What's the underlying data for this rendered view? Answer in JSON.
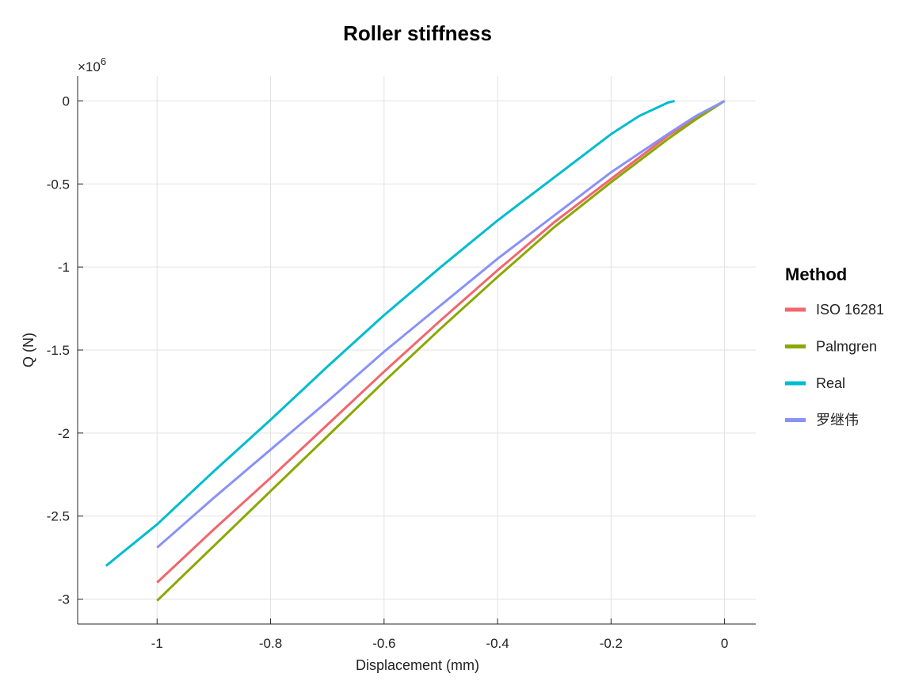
{
  "chart_data": {
    "type": "line",
    "title": "Roller stiffness",
    "xlabel": "Displacement (mm)",
    "ylabel": "Q (N)",
    "y_exponent_base": "×10",
    "y_exponent_power": "6",
    "y_scale_factor": 1000000,
    "xlim": [
      -1.14,
      0.055
    ],
    "ylim": [
      -3150000.0,
      150000.0
    ],
    "x_ticks": [
      {
        "value": -1,
        "label": "-1"
      },
      {
        "value": -0.8,
        "label": "-0.8"
      },
      {
        "value": -0.6,
        "label": "-0.6"
      },
      {
        "value": -0.4,
        "label": "-0.4"
      },
      {
        "value": -0.2,
        "label": "-0.2"
      },
      {
        "value": 0,
        "label": "0"
      }
    ],
    "y_ticks": [
      {
        "value": 0,
        "label": "0"
      },
      {
        "value": -500000,
        "label": "-0.5"
      },
      {
        "value": -1000000,
        "label": "-1"
      },
      {
        "value": -1500000,
        "label": "-1.5"
      },
      {
        "value": -2000000,
        "label": "-2"
      },
      {
        "value": -2500000,
        "label": "-2.5"
      },
      {
        "value": -3000000,
        "label": "-3"
      }
    ],
    "grid": true,
    "legend": {
      "title": "Method",
      "position": "right"
    },
    "series": [
      {
        "name": "ISO 16281",
        "color": "#f2666e",
        "x": [
          -1.0,
          -0.9,
          -0.8,
          -0.7,
          -0.6,
          -0.5,
          -0.4,
          -0.3,
          -0.2,
          -0.1,
          -0.05,
          0.0
        ],
        "y": [
          -2900000,
          -2580000,
          -2270000,
          -1950000,
          -1630000,
          -1320000,
          -1020000,
          -730000,
          -470000,
          -210000,
          -100000,
          0
        ]
      },
      {
        "name": "Palmgren",
        "color": "#8aa800",
        "x": [
          -1.0,
          -0.9,
          -0.8,
          -0.7,
          -0.6,
          -0.5,
          -0.4,
          -0.3,
          -0.2,
          -0.1,
          -0.05,
          0.0
        ],
        "y": [
          -3010000,
          -2680000,
          -2350000,
          -2020000,
          -1690000,
          -1370000,
          -1060000,
          -760000,
          -490000,
          -230000,
          -110000,
          0
        ]
      },
      {
        "name": "Real",
        "color": "#00bcd0",
        "x": [
          -1.09,
          -1.0,
          -0.9,
          -0.8,
          -0.7,
          -0.6,
          -0.5,
          -0.4,
          -0.3,
          -0.2,
          -0.15,
          -0.1,
          -0.088
        ],
        "y": [
          -2800000,
          -2550000,
          -2230000,
          -1920000,
          -1600000,
          -1290000,
          -1000000,
          -720000,
          -460000,
          -200000,
          -90000,
          -10000,
          0
        ]
      },
      {
        "name": "罗继伟",
        "color": "#8892f7",
        "x": [
          -1.0,
          -0.9,
          -0.8,
          -0.7,
          -0.6,
          -0.5,
          -0.4,
          -0.3,
          -0.2,
          -0.1,
          -0.05,
          0.0
        ],
        "y": [
          -2690000,
          -2390000,
          -2100000,
          -1810000,
          -1510000,
          -1230000,
          -950000,
          -690000,
          -430000,
          -200000,
          -90000,
          0
        ]
      }
    ]
  }
}
